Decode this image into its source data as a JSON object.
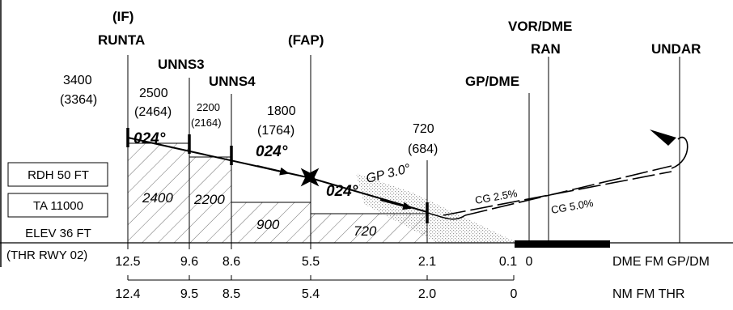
{
  "fixes": {
    "runta": {
      "role": "(IF)",
      "name": "RUNTA"
    },
    "unns3": {
      "name": "UNNS3"
    },
    "unns4": {
      "name": "UNNS4"
    },
    "fap": {
      "role": "(FAP)"
    },
    "gpdme": {
      "name": "GP/DME"
    },
    "vordme": {
      "type": "VOR/DME",
      "ident": "RAN"
    },
    "undar": {
      "name": "UNDAR"
    }
  },
  "altitudes": {
    "runta": {
      "alt": "3400",
      "hgt": "(3364)"
    },
    "unns3": {
      "alt": "2500",
      "hgt": "(2464)"
    },
    "unns4": {
      "alt": "2200",
      "hgt": "(2164)"
    },
    "fap": {
      "alt": "1800",
      "hgt": "(1764)"
    },
    "dme21": {
      "alt": "720",
      "hgt": "(684)"
    }
  },
  "bearings": {
    "b1": "024°",
    "b2": "024°",
    "b3": "024°"
  },
  "glidepath": "GP 3.0°",
  "climb_gradients": {
    "cg1": "CG 2.5%",
    "cg2": "CG 5.0%"
  },
  "min_altitudes": [
    "2400",
    "2200",
    "900",
    "720"
  ],
  "info_boxes": {
    "rdh": "RDH 50 FT",
    "ta": "TA 11000",
    "elev": "ELEV 36 FT",
    "thr": "(THR RWY 02)"
  },
  "dme_scale": {
    "label": "DME FM GP/DM",
    "values": [
      "12.5",
      "9.6",
      "8.6",
      "5.5",
      "2.1",
      "0.1",
      "0"
    ]
  },
  "nm_scale": {
    "label": "NM FM THR",
    "values": [
      "12.4",
      "9.5",
      "8.5",
      "5.4",
      "2.0",
      "0"
    ]
  },
  "colors": {
    "ink": "#000000",
    "hatch": "#6e6e6e",
    "stipple": "#9a9a9a",
    "runway": "#000000"
  }
}
